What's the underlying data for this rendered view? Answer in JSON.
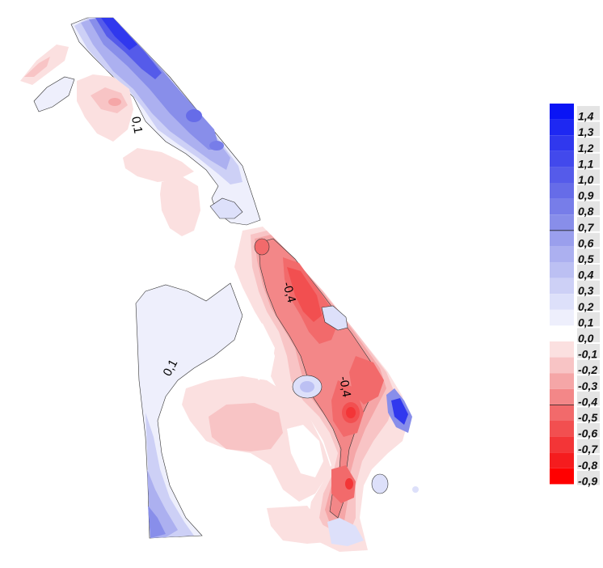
{
  "contour_labels": [
    "0,1",
    "-0,4",
    "-0,4",
    "0,1"
  ],
  "legend": {
    "levels": [
      {
        "label": "1,4",
        "color": "#0a14f5"
      },
      {
        "label": "1,3",
        "color": "#1e28f2"
      },
      {
        "label": "1,2",
        "color": "#3038ee"
      },
      {
        "label": "1,1",
        "color": "#4249ec"
      },
      {
        "label": "1,0",
        "color": "#555bea"
      },
      {
        "label": "0,9",
        "color": "#666ce8"
      },
      {
        "label": "0,8",
        "color": "#777de9"
      },
      {
        "label": "0,7",
        "color": "#888eea"
      },
      {
        "label": "0,6",
        "color": "#9a9fed"
      },
      {
        "label": "0,5",
        "color": "#acb0f0"
      },
      {
        "label": "0,4",
        "color": "#bcc0f3"
      },
      {
        "label": "0,3",
        "color": "#cdd0f6"
      },
      {
        "label": "0,2",
        "color": "#dde0fa"
      },
      {
        "label": "0,1",
        "color": "#eeeffc"
      },
      {
        "label": "0,0",
        "color": "#ffffff"
      },
      {
        "label": "-0,1",
        "color": "#fbe0e0"
      },
      {
        "label": "-0,2",
        "color": "#f8c4c5"
      },
      {
        "label": "-0,3",
        "color": "#f5a6a7"
      },
      {
        "label": "-0,4",
        "color": "#f38788"
      },
      {
        "label": "-0,5",
        "color": "#f26a6b"
      },
      {
        "label": "-0,6",
        "color": "#f24f50"
      },
      {
        "label": "-0,7",
        "color": "#f33537"
      },
      {
        "label": "-0,8",
        "color": "#f51c1e"
      },
      {
        "label": "-0,9",
        "color": "#ff0000"
      }
    ]
  }
}
